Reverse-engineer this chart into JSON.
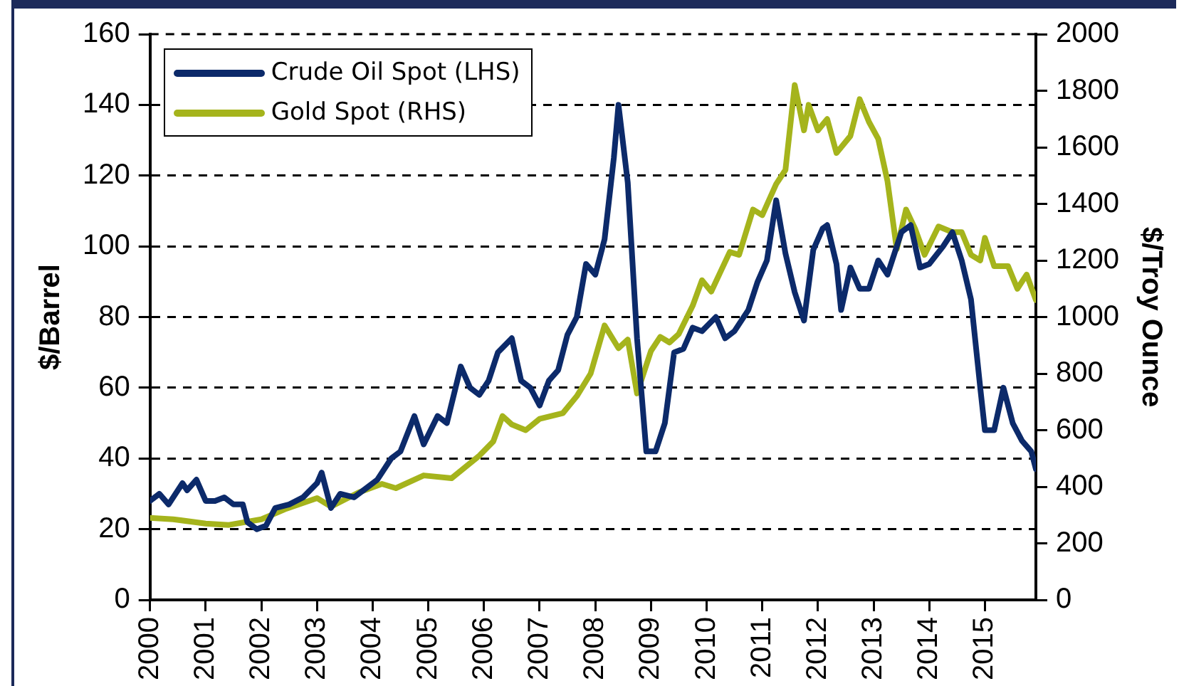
{
  "chart_data": {
    "type": "line",
    "ylabel": "$/Barrel",
    "y2label": "$/Troy Ounce",
    "legend": "top left",
    "grid": "y",
    "line_style": "solid",
    "marker": "none",
    "xlim": [
      "2000-01-01",
      "2015-12-01"
    ],
    "xticks": [
      {
        "value": "2000",
        "label": "2000"
      },
      {
        "value": "2001",
        "label": "2001"
      },
      {
        "value": "2002",
        "label": "2002"
      },
      {
        "value": "2003",
        "label": "2003"
      },
      {
        "value": "2004",
        "label": "2004"
      },
      {
        "value": "2005",
        "label": "2005"
      },
      {
        "value": "2006",
        "label": "2006"
      },
      {
        "value": "2007",
        "label": "2007"
      },
      {
        "value": "2008",
        "label": "2008"
      },
      {
        "value": "2009",
        "label": "2009"
      },
      {
        "value": "2010",
        "label": "2010"
      },
      {
        "value": "2011",
        "label": "2011"
      },
      {
        "value": "2012",
        "label": "2012"
      },
      {
        "value": "2013",
        "label": "2013"
      },
      {
        "value": "2014",
        "label": "2014"
      },
      {
        "value": "2015",
        "label": "2015"
      }
    ],
    "ylim": [
      0,
      160
    ],
    "yticks": [
      0,
      20,
      40,
      60,
      80,
      100,
      120,
      140,
      160
    ],
    "y2lim": [
      0,
      2000
    ],
    "y2ticks": [
      0,
      200,
      400,
      600,
      800,
      1000,
      1200,
      1400,
      1600,
      1800,
      2000
    ],
    "series": [
      {
        "name": "Crude Oil Spot (LHS)",
        "color": "#0c2a6a",
        "x": [
          "2000-01",
          "2000-03",
          "2000-05",
          "2000-08",
          "2000-09",
          "2000-11",
          "2001-01",
          "2001-03",
          "2001-05",
          "2001-07",
          "2001-09",
          "2001-10",
          "2001-12",
          "2002-02",
          "2002-04",
          "2002-07",
          "2002-10",
          "2003-01",
          "2003-02",
          "2003-04",
          "2003-06",
          "2003-09",
          "2003-11",
          "2004-02",
          "2004-05",
          "2004-07",
          "2004-10",
          "2004-12",
          "2005-03",
          "2005-05",
          "2005-08",
          "2005-10",
          "2005-12",
          "2006-02",
          "2006-04",
          "2006-07",
          "2006-09",
          "2006-11",
          "2007-01",
          "2007-03",
          "2007-05",
          "2007-07",
          "2007-09",
          "2007-11",
          "2008-01",
          "2008-03",
          "2008-05",
          "2008-06",
          "2008-08",
          "2008-10",
          "2008-12",
          "2009-02",
          "2009-04",
          "2009-06",
          "2009-08",
          "2009-10",
          "2009-12",
          "2010-03",
          "2010-05",
          "2010-07",
          "2010-10",
          "2010-12",
          "2011-02",
          "2011-04",
          "2011-06",
          "2011-08",
          "2011-10",
          "2011-12",
          "2012-02",
          "2012-03",
          "2012-05",
          "2012-06",
          "2012-08",
          "2012-10",
          "2012-12",
          "2013-02",
          "2013-04",
          "2013-07",
          "2013-09",
          "2013-11",
          "2014-01",
          "2014-04",
          "2014-06",
          "2014-08",
          "2014-10",
          "2014-12",
          "2015-01",
          "2015-03",
          "2015-05",
          "2015-07",
          "2015-09",
          "2015-11",
          "2015-12"
        ],
        "values": [
          28,
          30,
          27,
          33,
          31,
          34,
          28,
          28,
          29,
          27,
          27,
          22,
          20,
          21,
          26,
          27,
          29,
          33,
          36,
          26,
          30,
          29,
          31,
          34,
          40,
          42,
          52,
          44,
          52,
          50,
          66,
          60,
          58,
          62,
          70,
          74,
          62,
          60,
          55,
          62,
          65,
          75,
          80,
          95,
          92,
          102,
          125,
          140,
          118,
          74,
          42,
          42,
          50,
          70,
          71,
          77,
          76,
          80,
          74,
          76,
          82,
          90,
          96,
          113,
          98,
          87,
          79,
          99,
          105,
          106,
          95,
          82,
          94,
          88,
          88,
          96,
          92,
          104,
          106,
          94,
          95,
          100,
          104,
          96,
          85,
          60,
          48,
          48,
          60,
          50,
          45,
          42,
          37
        ]
      },
      {
        "name": "Gold Spot (RHS)",
        "color": "#a5b41c",
        "axis": "y2",
        "x": [
          "2000-01",
          "2000-06",
          "2001-01",
          "2001-06",
          "2002-01",
          "2002-06",
          "2003-01",
          "2003-04",
          "2003-10",
          "2004-03",
          "2004-06",
          "2004-12",
          "2005-06",
          "2005-12",
          "2006-03",
          "2006-05",
          "2006-07",
          "2006-10",
          "2007-01",
          "2007-06",
          "2007-09",
          "2007-12",
          "2008-03",
          "2008-06",
          "2008-08",
          "2008-10",
          "2009-01",
          "2009-03",
          "2009-05",
          "2009-07",
          "2009-10",
          "2009-12",
          "2010-02",
          "2010-06",
          "2010-08",
          "2010-11",
          "2011-01",
          "2011-04",
          "2011-06",
          "2011-08",
          "2011-10",
          "2011-11",
          "2012-01",
          "2012-03",
          "2012-05",
          "2012-08",
          "2012-10",
          "2012-12",
          "2013-02",
          "2013-04",
          "2013-06",
          "2013-08",
          "2013-10",
          "2013-12",
          "2014-03",
          "2014-06",
          "2014-08",
          "2014-10",
          "2014-12",
          "2015-01",
          "2015-03",
          "2015-06",
          "2015-08",
          "2015-10",
          "2015-12"
        ],
        "values": [
          290,
          285,
          270,
          265,
          285,
          320,
          360,
          330,
          380,
          410,
          395,
          440,
          430,
          510,
          560,
          650,
          620,
          600,
          640,
          660,
          720,
          800,
          970,
          890,
          920,
          730,
          880,
          930,
          910,
          940,
          1040,
          1130,
          1090,
          1230,
          1220,
          1380,
          1360,
          1470,
          1520,
          1820,
          1660,
          1750,
          1660,
          1700,
          1580,
          1640,
          1770,
          1690,
          1630,
          1480,
          1240,
          1380,
          1310,
          1220,
          1320,
          1300,
          1300,
          1220,
          1200,
          1280,
          1180,
          1180,
          1100,
          1150,
          1060
        ]
      }
    ]
  }
}
